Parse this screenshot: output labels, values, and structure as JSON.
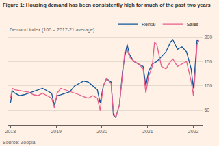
{
  "chart_data": {
    "type": "line",
    "title": "Figure 1: Housing demand has been consistently high for much of the past two years",
    "y_label": "Demand index (100 = 2017-21 average)",
    "source": "Source: Zoopla",
    "x": [
      2018.0,
      2018.04,
      2018.1,
      2018.2,
      2018.3,
      2018.4,
      2018.5,
      2018.6,
      2018.7,
      2018.8,
      2018.9,
      2018.96,
      2019.02,
      2019.1,
      2019.2,
      2019.3,
      2019.4,
      2019.5,
      2019.6,
      2019.7,
      2019.8,
      2019.9,
      2019.96,
      2020.03,
      2020.1,
      2020.2,
      2020.25,
      2020.3,
      2020.38,
      2020.45,
      2020.5,
      2020.55,
      2020.6,
      2020.7,
      2020.8,
      2020.9,
      2020.96,
      2021.02,
      2021.1,
      2021.15,
      2021.2,
      2021.3,
      2021.4,
      2021.5,
      2021.55,
      2021.65,
      2021.75,
      2021.85,
      2021.95,
      2022.0,
      2022.05,
      2022.08,
      2022.12
    ],
    "series": [
      {
        "name": "Rental",
        "color": "#0f5499",
        "values": [
          65,
          90,
          85,
          80,
          82,
          85,
          88,
          92,
          95,
          90,
          85,
          60,
          80,
          82,
          85,
          88,
          100,
          105,
          110,
          108,
          100,
          92,
          65,
          100,
          115,
          108,
          40,
          35,
          60,
          130,
          160,
          185,
          165,
          150,
          145,
          140,
          100,
          130,
          145,
          148,
          150,
          160,
          170,
          190,
          195,
          175,
          180,
          170,
          135,
          95,
          150,
          195,
          190
        ]
      },
      {
        "name": "Sales",
        "color": "#e95d8c",
        "values": [
          75,
          95,
          92,
          90,
          88,
          87,
          82,
          80,
          85,
          80,
          75,
          55,
          85,
          95,
          92,
          88,
          85,
          82,
          78,
          75,
          80,
          75,
          50,
          100,
          115,
          105,
          45,
          35,
          60,
          130,
          170,
          175,
          160,
          150,
          145,
          135,
          85,
          120,
          140,
          190,
          185,
          140,
          135,
          150,
          155,
          140,
          145,
          150,
          110,
          80,
          140,
          185,
          195
        ]
      }
    ],
    "xlim": [
      2017.95,
      2022.2
    ],
    "xticks": [
      2018,
      2019,
      2020,
      2021,
      2022
    ],
    "ylim": [
      20,
      205
    ],
    "yticks": [
      50,
      100,
      150,
      200
    ],
    "grid": true,
    "legend": "top right"
  }
}
